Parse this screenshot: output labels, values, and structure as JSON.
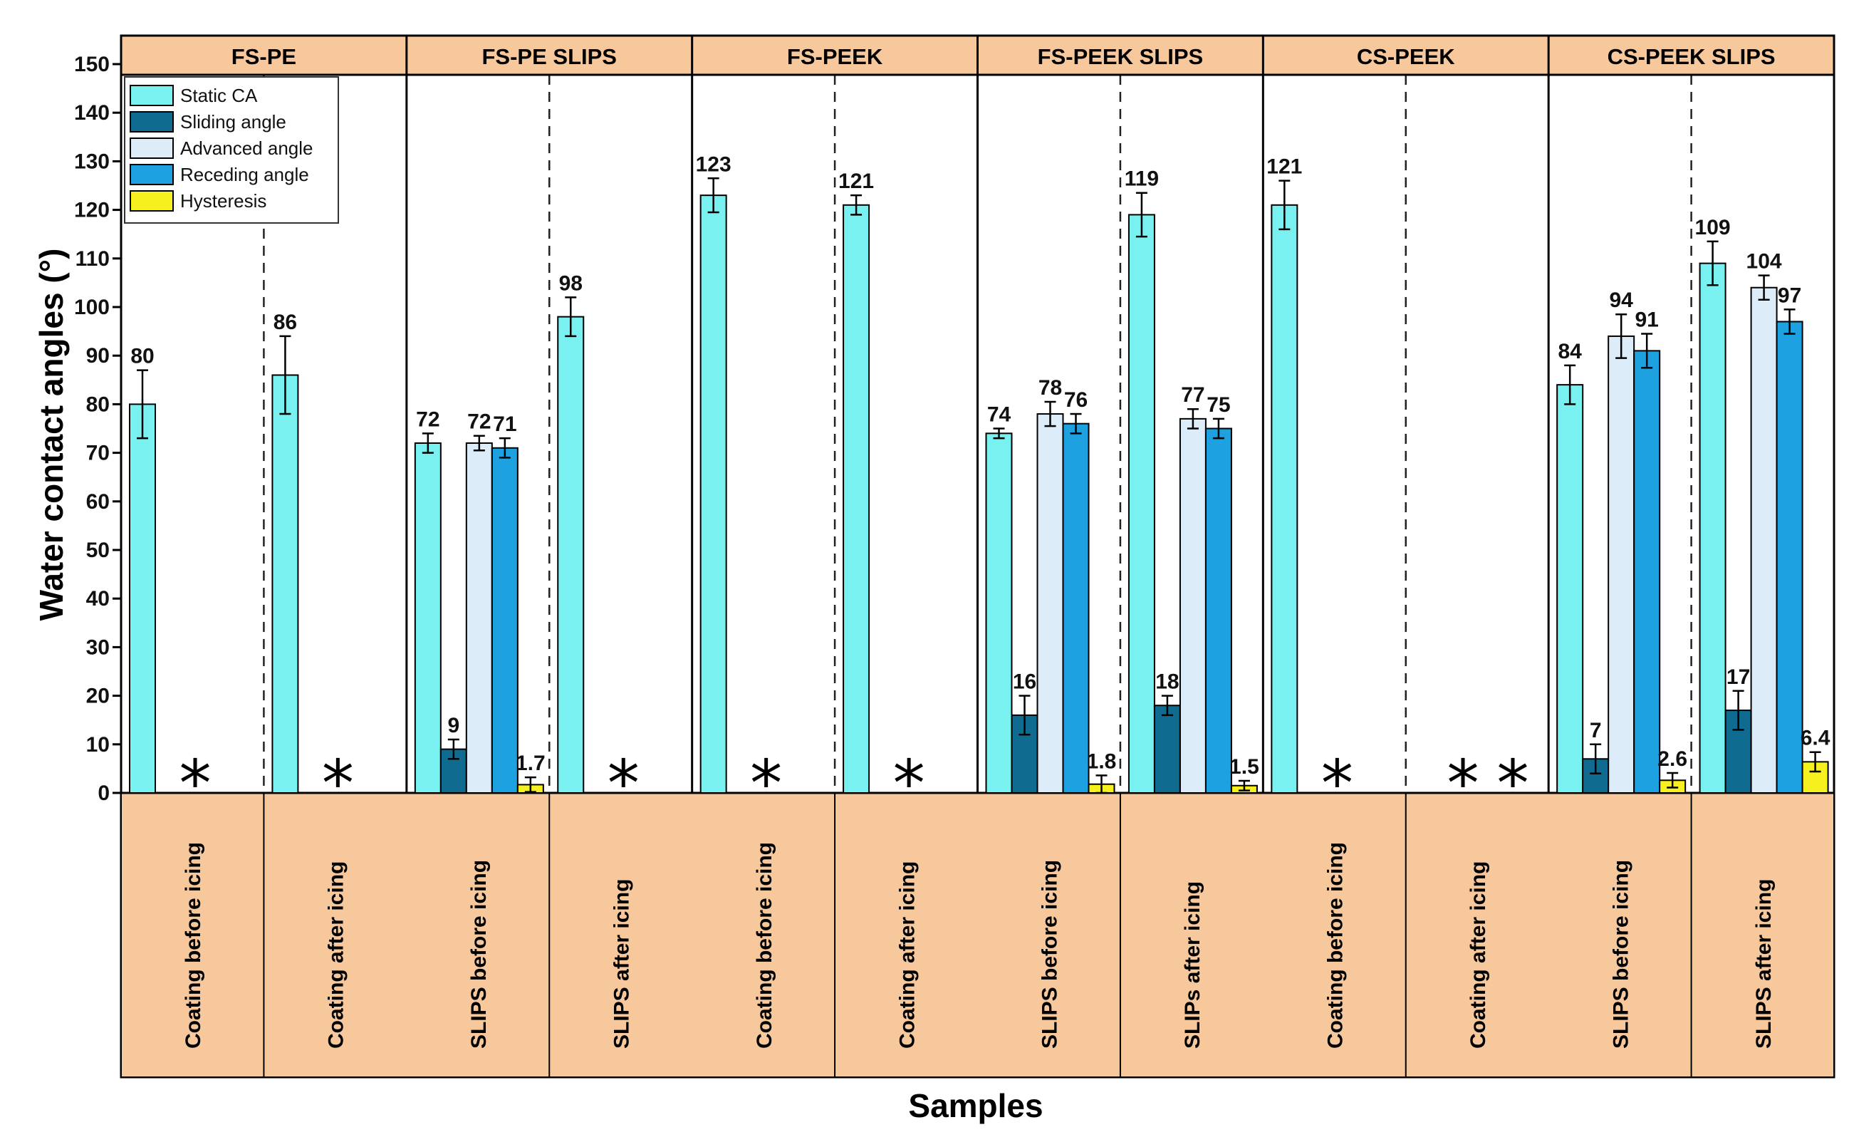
{
  "chart_data": {
    "type": "bar",
    "ylabel": "Water contact angles (°)",
    "xlabel": "Samples",
    "ylim": [
      0,
      150
    ],
    "ytick_step": 10,
    "colors": {
      "static": "#7af1f1",
      "sliding": "#0f6b8f",
      "advanced": "#dcecf8",
      "receding": "#1da1e0",
      "hysteresis": "#f6f01e",
      "band": "#f8c89d"
    },
    "legend": [
      {
        "key": "static",
        "label": "Static CA"
      },
      {
        "key": "sliding",
        "label": "Sliding angle"
      },
      {
        "key": "advanced",
        "label": "Advanced angle"
      },
      {
        "key": "receding",
        "label": "Receding angle"
      },
      {
        "key": "hysteresis",
        "label": "Hysteresis"
      }
    ],
    "groups": [
      {
        "name": "FS-PE",
        "conditions": [
          {
            "label": "Coating before icing",
            "stars": 1,
            "bars": [
              {
                "series": "static",
                "value": 80,
                "err": 7,
                "label": "80"
              }
            ]
          },
          {
            "label": "Coating after icing",
            "stars": 1,
            "bars": [
              {
                "series": "static",
                "value": 86,
                "err": 8,
                "label": "86"
              }
            ]
          }
        ]
      },
      {
        "name": "FS-PE SLIPS",
        "conditions": [
          {
            "label": "SLIPS before icing",
            "stars": 0,
            "bars": [
              {
                "series": "static",
                "value": 72,
                "err": 2,
                "label": "72"
              },
              {
                "series": "sliding",
                "value": 9,
                "err": 2,
                "label": "9"
              },
              {
                "series": "advanced",
                "value": 72,
                "err": 1.5,
                "label": "72"
              },
              {
                "series": "receding",
                "value": 71,
                "err": 2,
                "label": "71"
              },
              {
                "series": "hysteresis",
                "value": 1.7,
                "err": 1.5,
                "label": "1.7"
              }
            ]
          },
          {
            "label": "SLIPS after icing",
            "stars": 1,
            "bars": [
              {
                "series": "static",
                "value": 98,
                "err": 4,
                "label": "98"
              }
            ]
          }
        ]
      },
      {
        "name": "FS-PEEK",
        "conditions": [
          {
            "label": "Coating before icing",
            "stars": 1,
            "bars": [
              {
                "series": "static",
                "value": 123,
                "err": 3.5,
                "label": "123"
              }
            ]
          },
          {
            "label": "Coating after icing",
            "stars": 1,
            "bars": [
              {
                "series": "static",
                "value": 121,
                "err": 2,
                "label": "121"
              }
            ]
          }
        ]
      },
      {
        "name": "FS-PEEK SLIPS",
        "conditions": [
          {
            "label": "SLIPS before icing",
            "stars": 0,
            "bars": [
              {
                "series": "static",
                "value": 74,
                "err": 1,
                "label": "74"
              },
              {
                "series": "sliding",
                "value": 16,
                "err": 4,
                "label": "16"
              },
              {
                "series": "advanced",
                "value": 78,
                "err": 2.5,
                "label": "78"
              },
              {
                "series": "receding",
                "value": 76,
                "err": 2,
                "label": "76"
              },
              {
                "series": "hysteresis",
                "value": 1.8,
                "err": 1.8,
                "label": "1.8"
              }
            ]
          },
          {
            "label": "SLIPs after icing",
            "stars": 0,
            "bars": [
              {
                "series": "static",
                "value": 119,
                "err": 4.5,
                "label": "119"
              },
              {
                "series": "sliding",
                "value": 18,
                "err": 2,
                "label": "18"
              },
              {
                "series": "advanced",
                "value": 77,
                "err": 2,
                "label": "77"
              },
              {
                "series": "receding",
                "value": 75,
                "err": 2,
                "label": "75"
              },
              {
                "series": "hysteresis",
                "value": 1.5,
                "err": 1,
                "label": "1.5"
              }
            ]
          }
        ]
      },
      {
        "name": "CS-PEEK",
        "conditions": [
          {
            "label": "Coating before icing",
            "stars": 1,
            "bars": [
              {
                "series": "static",
                "value": 121,
                "err": 5,
                "label": "121"
              }
            ]
          },
          {
            "label": "Coating after icing",
            "stars": 2,
            "bars": []
          }
        ]
      },
      {
        "name": "CS-PEEK SLIPS",
        "conditions": [
          {
            "label": "SLIPS before icing",
            "stars": 0,
            "bars": [
              {
                "series": "static",
                "value": 84,
                "err": 4,
                "label": "84"
              },
              {
                "series": "sliding",
                "value": 7,
                "err": 3,
                "label": "7"
              },
              {
                "series": "advanced",
                "value": 94,
                "err": 4.5,
                "label": "94"
              },
              {
                "series": "receding",
                "value": 91,
                "err": 3.5,
                "label": "91"
              },
              {
                "series": "hysteresis",
                "value": 2.6,
                "err": 1.5,
                "label": "2.6"
              }
            ]
          },
          {
            "label": "SLIPS after icing",
            "stars": 0,
            "bars": [
              {
                "series": "static",
                "value": 109,
                "err": 4.5,
                "label": "109"
              },
              {
                "series": "sliding",
                "value": 17,
                "err": 4,
                "label": "17"
              },
              {
                "series": "advanced",
                "value": 104,
                "err": 2.5,
                "label": "104"
              },
              {
                "series": "receding",
                "value": 97,
                "err": 2.5,
                "label": "97"
              },
              {
                "series": "hysteresis",
                "value": 6.4,
                "err": 2,
                "label": "6.4"
              }
            ]
          }
        ]
      }
    ]
  }
}
